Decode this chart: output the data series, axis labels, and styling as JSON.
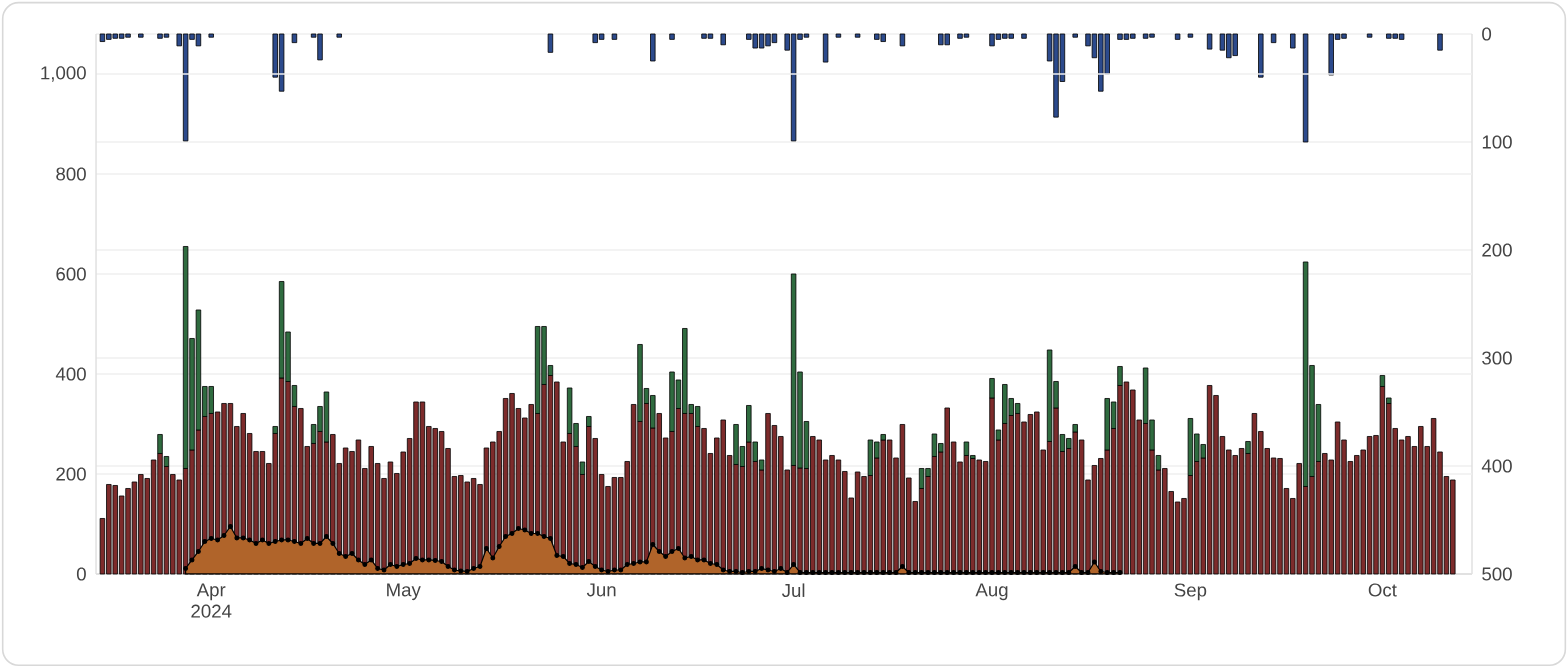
{
  "chart_data": {
    "type": "bar",
    "stacked": true,
    "grid": "y",
    "xlim": [
      "2024-03-14",
      "2024-10-15"
    ],
    "xticks": [
      {
        "value": "2024-04-01",
        "label": "Apr 2024"
      },
      {
        "value": "2024-05-01",
        "label": "May"
      },
      {
        "value": "2024-06-01",
        "label": "Jun"
      },
      {
        "value": "2024-07-01",
        "label": "Jul"
      },
      {
        "value": "2024-08-01",
        "label": "Aug"
      },
      {
        "value": "2024-09-01",
        "label": "Sep"
      },
      {
        "value": "2024-10-01",
        "label": "Oct"
      }
    ],
    "ylim": [
      0,
      1080
    ],
    "yticks": [
      0,
      200,
      400,
      600,
      800,
      {
        "value": 1000,
        "label": "1,000"
      }
    ],
    "y2lim": [
      500,
      0
    ],
    "y2ticks": [
      0,
      100,
      200,
      300,
      400,
      500
    ],
    "x": [
      "2024-03-15",
      "2024-03-16",
      "2024-03-17",
      "2024-03-18",
      "2024-03-19",
      "2024-03-20",
      "2024-03-21",
      "2024-03-22",
      "2024-03-23",
      "2024-03-24",
      "2024-03-25",
      "2024-03-26",
      "2024-03-27",
      "2024-03-28",
      "2024-03-29",
      "2024-03-30",
      "2024-03-31",
      "2024-04-01",
      "2024-04-02",
      "2024-04-03",
      "2024-04-04",
      "2024-04-05",
      "2024-04-06",
      "2024-04-07",
      "2024-04-08",
      "2024-04-09",
      "2024-04-10",
      "2024-04-11",
      "2024-04-12",
      "2024-04-13",
      "2024-04-14",
      "2024-04-15",
      "2024-04-16",
      "2024-04-17",
      "2024-04-18",
      "2024-04-19",
      "2024-04-20",
      "2024-04-21",
      "2024-04-22",
      "2024-04-23",
      "2024-04-24",
      "2024-04-25",
      "2024-04-26",
      "2024-04-27",
      "2024-04-28",
      "2024-04-29",
      "2024-04-30",
      "2024-05-01",
      "2024-05-02",
      "2024-05-03",
      "2024-05-04",
      "2024-05-05",
      "2024-05-06",
      "2024-05-07",
      "2024-05-08",
      "2024-05-09",
      "2024-05-10",
      "2024-05-11",
      "2024-05-12",
      "2024-05-13",
      "2024-05-14",
      "2024-05-15",
      "2024-05-16",
      "2024-05-17",
      "2024-05-18",
      "2024-05-19",
      "2024-05-20",
      "2024-05-21",
      "2024-05-22",
      "2024-05-23",
      "2024-05-24",
      "2024-05-25",
      "2024-05-26",
      "2024-05-27",
      "2024-05-28",
      "2024-05-29",
      "2024-05-30",
      "2024-05-31",
      "2024-06-01",
      "2024-06-02",
      "2024-06-03",
      "2024-06-04",
      "2024-06-05",
      "2024-06-06",
      "2024-06-07",
      "2024-06-08",
      "2024-06-09",
      "2024-06-10",
      "2024-06-11",
      "2024-06-12",
      "2024-06-13",
      "2024-06-14",
      "2024-06-15",
      "2024-06-16",
      "2024-06-17",
      "2024-06-18",
      "2024-06-19",
      "2024-06-20",
      "2024-06-21",
      "2024-06-22",
      "2024-06-23",
      "2024-06-24",
      "2024-06-25",
      "2024-06-26",
      "2024-06-27",
      "2024-06-28",
      "2024-06-29",
      "2024-06-30",
      "2024-07-01",
      "2024-07-02",
      "2024-07-03",
      "2024-07-04",
      "2024-07-05",
      "2024-07-06",
      "2024-07-07",
      "2024-07-08",
      "2024-07-09",
      "2024-07-10",
      "2024-07-11",
      "2024-07-12",
      "2024-07-13",
      "2024-07-14",
      "2024-07-15",
      "2024-07-16",
      "2024-07-17",
      "2024-07-18",
      "2024-07-19",
      "2024-07-20",
      "2024-07-21",
      "2024-07-22",
      "2024-07-23",
      "2024-07-24",
      "2024-07-25",
      "2024-07-26",
      "2024-07-27",
      "2024-07-28",
      "2024-07-29",
      "2024-07-30",
      "2024-07-31",
      "2024-08-01",
      "2024-08-02",
      "2024-08-03",
      "2024-08-04",
      "2024-08-05",
      "2024-08-06",
      "2024-08-07",
      "2024-08-08",
      "2024-08-09",
      "2024-08-10",
      "2024-08-11",
      "2024-08-12",
      "2024-08-13",
      "2024-08-14",
      "2024-08-15",
      "2024-08-16",
      "2024-08-17",
      "2024-08-18",
      "2024-08-19",
      "2024-08-20",
      "2024-08-21",
      "2024-08-22",
      "2024-08-23",
      "2024-08-24",
      "2024-08-25",
      "2024-08-26",
      "2024-08-27",
      "2024-08-28",
      "2024-08-29",
      "2024-08-30",
      "2024-08-31",
      "2024-09-01",
      "2024-09-02",
      "2024-09-03",
      "2024-09-04",
      "2024-09-05",
      "2024-09-06",
      "2024-09-07",
      "2024-09-08",
      "2024-09-09",
      "2024-09-10",
      "2024-09-11",
      "2024-09-12",
      "2024-09-13",
      "2024-09-14",
      "2024-09-15",
      "2024-09-16",
      "2024-09-17",
      "2024-09-18",
      "2024-09-19",
      "2024-09-20",
      "2024-09-21",
      "2024-09-22",
      "2024-09-23",
      "2024-09-24",
      "2024-09-25",
      "2024-09-26",
      "2024-09-27",
      "2024-09-28",
      "2024-09-29",
      "2024-09-30",
      "2024-10-01",
      "2024-10-02",
      "2024-10-03",
      "2024-10-04",
      "2024-10-05",
      "2024-10-06",
      "2024-10-07",
      "2024-10-08",
      "2024-10-09",
      "2024-10-10",
      "2024-10-11",
      "2024-10-12"
    ],
    "series": [
      {
        "color": "#7d2b2b",
        "values": [
          111,
          179,
          177,
          156,
          171,
          184,
          199,
          191,
          228,
          241,
          215,
          199,
          188,
          211,
          248,
          288,
          315,
          321,
          324,
          341,
          341,
          295,
          321,
          281,
          245,
          245,
          221,
          281,
          392,
          385,
          335,
          331,
          255,
          261,
          285,
          264,
          279,
          221,
          252,
          245,
          268,
          211,
          255,
          221,
          191,
          224,
          201,
          244,
          271,
          344,
          344,
          295,
          291,
          285,
          251,
          195,
          197,
          184,
          191,
          179,
          252,
          264,
          285,
          351,
          361,
          331,
          312,
          339,
          321,
          379,
          397,
          384,
          264,
          281,
          255,
          199,
          295,
          271,
          199,
          175,
          193,
          193,
          225,
          339,
          305,
          341,
          292,
          321,
          272,
          285,
          331,
          321,
          321,
          295,
          291,
          241,
          272,
          308,
          237,
          219,
          215,
          264,
          225,
          208,
          321,
          297,
          275,
          208,
          217,
          212,
          211,
          275,
          268,
          228,
          237,
          228,
          205,
          152,
          204,
          195,
          197,
          232,
          268,
          268,
          232,
          299,
          192,
          145,
          171,
          195,
          235,
          244,
          332,
          264,
          224,
          237,
          231,
          228,
          225,
          352,
          268,
          301,
          317,
          321,
          304,
          319,
          324,
          248,
          265,
          332,
          245,
          251,
          284,
          268,
          188,
          217,
          231,
          248,
          291,
          377,
          384,
          368,
          308,
          301,
          248,
          208,
          211,
          165,
          144,
          151,
          197,
          225,
          232,
          377,
          357,
          275,
          248,
          237,
          251,
          241,
          321,
          285,
          251,
          232,
          231,
          171,
          151,
          221,
          175,
          195,
          225,
          241,
          228,
          304,
          268,
          225,
          237,
          248,
          275,
          277,
          375,
          341,
          291,
          268,
          275,
          255,
          295,
          255,
          311,
          244,
          195,
          188
        ]
      },
      {
        "color": "#2f6b3f",
        "values": [
          null,
          null,
          null,
          null,
          null,
          null,
          null,
          null,
          null,
          38,
          20,
          null,
          null,
          444,
          223,
          240,
          60,
          54,
          null,
          null,
          null,
          null,
          null,
          null,
          null,
          null,
          null,
          14,
          193,
          99,
          42,
          null,
          null,
          38,
          50,
          100,
          null,
          null,
          null,
          null,
          null,
          null,
          null,
          null,
          null,
          null,
          null,
          null,
          null,
          null,
          null,
          null,
          null,
          null,
          null,
          null,
          null,
          null,
          null,
          null,
          null,
          null,
          null,
          null,
          null,
          null,
          null,
          null,
          174,
          116,
          20,
          null,
          null,
          91,
          46,
          25,
          20,
          null,
          null,
          null,
          null,
          null,
          null,
          null,
          154,
          30,
          65,
          null,
          null,
          119,
          57,
          170,
          18,
          40,
          null,
          null,
          null,
          null,
          null,
          80,
          40,
          73,
          39,
          20,
          null,
          null,
          null,
          null,
          383,
          192,
          94,
          null,
          null,
          null,
          null,
          null,
          null,
          null,
          null,
          null,
          71,
          32,
          11,
          null,
          null,
          null,
          null,
          null,
          40,
          16,
          45,
          17,
          null,
          null,
          null,
          27,
          6,
          null,
          null,
          39,
          20,
          78,
          34,
          20,
          null,
          null,
          null,
          null,
          183,
          53,
          34,
          20,
          15,
          null,
          null,
          null,
          null,
          103,
          53,
          38,
          null,
          null,
          null,
          111,
          60,
          29,
          null,
          null,
          null,
          null,
          114,
          55,
          27,
          null,
          null,
          null,
          null,
          null,
          null,
          24,
          null,
          null,
          null,
          null,
          null,
          null,
          null,
          null,
          449,
          222,
          114,
          null,
          null,
          null,
          null,
          null,
          null,
          null,
          null,
          null,
          22,
          11,
          null,
          null,
          null,
          null,
          null,
          null,
          null,
          null,
          null,
          null
        ]
      },
      {
        "type": "area",
        "color": "#b0642a",
        "marker": "circle",
        "values": [
          null,
          null,
          null,
          null,
          null,
          null,
          null,
          null,
          null,
          null,
          null,
          null,
          null,
          11,
          28,
          45,
          65,
          71,
          68,
          77,
          95,
          72,
          72,
          68,
          61,
          68,
          61,
          65,
          68,
          68,
          65,
          61,
          71,
          61,
          61,
          75,
          61,
          41,
          35,
          41,
          28,
          19,
          28,
          11,
          8,
          19,
          15,
          19,
          21,
          31,
          28,
          28,
          27,
          25,
          15,
          8,
          6,
          5,
          11,
          15,
          51,
          32,
          55,
          75,
          81,
          91,
          88,
          81,
          81,
          75,
          71,
          37,
          35,
          21,
          19,
          13,
          25,
          15,
          8,
          5,
          8,
          8,
          19,
          21,
          24,
          24,
          59,
          45,
          35,
          45,
          51,
          32,
          35,
          28,
          28,
          21,
          19,
          8,
          5,
          5,
          3,
          5,
          5,
          11,
          8,
          5,
          11,
          3,
          19,
          3,
          3,
          3,
          3,
          3,
          3,
          3,
          3,
          3,
          3,
          3,
          3,
          3,
          3,
          3,
          3,
          15,
          3,
          3,
          3,
          3,
          3,
          3,
          3,
          3,
          3,
          3,
          3,
          3,
          3,
          3,
          3,
          3,
          3,
          3,
          3,
          3,
          3,
          3,
          3,
          3,
          3,
          3,
          15,
          3,
          3,
          24,
          5,
          3,
          3,
          3,
          null,
          null,
          null,
          null,
          null,
          null,
          null,
          null,
          null,
          null,
          null,
          null,
          null,
          null,
          null,
          null,
          null,
          null,
          null,
          null,
          null,
          null,
          null,
          null,
          null,
          null,
          null,
          null,
          null,
          null,
          null,
          null,
          null,
          null,
          null,
          null,
          null,
          null,
          null,
          null,
          null,
          null,
          null,
          null,
          null,
          null,
          null,
          null,
          null,
          null,
          null,
          null
        ]
      },
      {
        "axis": "y2",
        "color": "#2c4a8c",
        "values": [
          7,
          5,
          4,
          4,
          3,
          null,
          3,
          null,
          null,
          4,
          3,
          null,
          11,
          99,
          5,
          11,
          null,
          3,
          null,
          null,
          null,
          null,
          null,
          null,
          null,
          null,
          null,
          40,
          53,
          null,
          8,
          null,
          null,
          3,
          24,
          null,
          null,
          3,
          null,
          null,
          null,
          null,
          null,
          null,
          null,
          null,
          null,
          null,
          null,
          null,
          null,
          null,
          null,
          null,
          null,
          null,
          null,
          null,
          null,
          null,
          null,
          null,
          null,
          null,
          null,
          null,
          null,
          null,
          null,
          null,
          17,
          null,
          null,
          null,
          null,
          null,
          null,
          8,
          5,
          null,
          5,
          null,
          null,
          null,
          null,
          null,
          25,
          null,
          null,
          5,
          null,
          null,
          null,
          null,
          4,
          4,
          null,
          10,
          null,
          null,
          null,
          5,
          13,
          13,
          11,
          8,
          null,
          15,
          99,
          5,
          3,
          null,
          null,
          26,
          null,
          3,
          null,
          null,
          3,
          null,
          null,
          5,
          7,
          null,
          null,
          11,
          null,
          null,
          null,
          null,
          null,
          10,
          10,
          null,
          4,
          3,
          null,
          null,
          null,
          11,
          5,
          4,
          4,
          null,
          4,
          null,
          null,
          null,
          25,
          77,
          44,
          null,
          3,
          null,
          11,
          22,
          53,
          37,
          null,
          5,
          5,
          4,
          null,
          4,
          3,
          null,
          null,
          null,
          5,
          null,
          3,
          null,
          null,
          14,
          null,
          15,
          22,
          20,
          null,
          null,
          null,
          40,
          null,
          8,
          null,
          null,
          13,
          null,
          100,
          null,
          null,
          null,
          38,
          5,
          4,
          null,
          null,
          null,
          3,
          null,
          null,
          4,
          4,
          5,
          null,
          null,
          null,
          null,
          null,
          15,
          null,
          null
        ]
      }
    ]
  }
}
